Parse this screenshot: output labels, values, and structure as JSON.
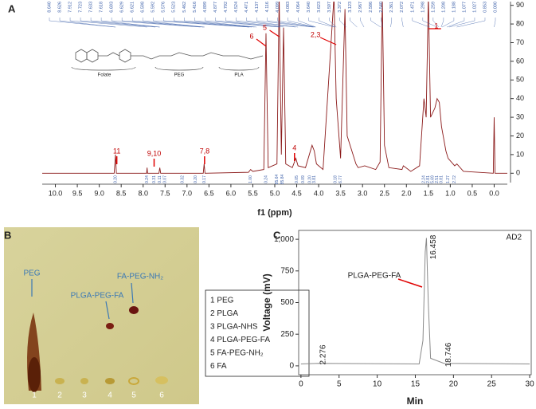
{
  "chart_data": [
    {
      "type": "nmr",
      "panel": "A",
      "xlabel": "f1 (ppm)",
      "color": "#8b1a1a",
      "xlim": [
        10.3,
        -0.3
      ],
      "ylim": [
        -5,
        92
      ],
      "xticks": [
        {
          "value": 10,
          "label": "10.0"
        },
        {
          "value": 9.5,
          "label": "9.5"
        },
        {
          "value": 9,
          "label": "9.0"
        },
        {
          "value": 8.5,
          "label": "8.5"
        },
        {
          "value": 8,
          "label": "8.0"
        },
        {
          "value": 7.5,
          "label": "7.5"
        },
        {
          "value": 7,
          "label": "7.0"
        },
        {
          "value": 6.5,
          "label": "6.5"
        },
        {
          "value": 6,
          "label": "6.0"
        },
        {
          "value": 5.5,
          "label": "5.5"
        },
        {
          "value": 5,
          "label": "5.0"
        },
        {
          "value": 4.5,
          "label": "4.5"
        },
        {
          "value": 4,
          "label": "4.0"
        },
        {
          "value": 3.5,
          "label": "3.5"
        },
        {
          "value": 3,
          "label": "3.0"
        },
        {
          "value": 2.5,
          "label": "2.5"
        },
        {
          "value": 2,
          "label": "2.0"
        },
        {
          "value": 1.5,
          "label": "1.5"
        },
        {
          "value": 1,
          "label": "1.0"
        },
        {
          "value": 0.5,
          "label": "0.5"
        },
        {
          "value": 0,
          "label": "0.0"
        }
      ],
      "yticks": [
        0,
        10,
        20,
        30,
        40,
        50,
        60,
        70,
        80,
        90
      ],
      "x": [
        10.3,
        8.66,
        8.63,
        8.61,
        7.92,
        7.91,
        7.9,
        7.64,
        7.62,
        7.6,
        6.63,
        6.61,
        6.59,
        5.6,
        5.55,
        5.5,
        5.25,
        5.2,
        5.15,
        4.95,
        4.9,
        4.85,
        4.8,
        4.75,
        4.6,
        4.52,
        4.47,
        4.3,
        4.15,
        4.1,
        4.05,
        3.9,
        3.65,
        3.6,
        3.5,
        3.4,
        3.35,
        3.15,
        3.1,
        2.95,
        2.7,
        2.6,
        2.55,
        2.5,
        2.4,
        2.1,
        2.07,
        1.9,
        1.7,
        1.6,
        1.55,
        1.5,
        1.45,
        1.35,
        1.3,
        1.25,
        1.2,
        1.1,
        1.05,
        0.9,
        0.85,
        0.7,
        0.02,
        0,
        -0.02,
        -0.3
      ],
      "y": [
        0,
        0,
        10,
        0,
        0,
        3,
        0,
        0,
        3,
        0,
        0,
        5,
        0,
        0.5,
        2,
        1,
        2,
        75,
        3,
        5,
        95,
        10,
        78,
        5,
        3,
        8,
        4,
        3,
        15,
        12,
        5,
        2,
        95,
        40,
        8,
        88,
        20,
        5,
        3,
        4,
        2,
        6,
        95,
        15,
        3,
        2,
        4,
        1,
        4,
        40,
        30,
        95,
        30,
        35,
        40,
        38,
        25,
        12,
        8,
        4,
        5,
        1,
        0,
        30,
        0,
        0
      ],
      "peak_ppm_labels": [
        {
          "value": 8.64,
          "label": "8.640"
        },
        {
          "value": 8.626,
          "label": "8.626"
        },
        {
          "value": 7.912,
          "label": "7.912"
        },
        {
          "value": 7.723,
          "label": "7.723"
        },
        {
          "value": 7.633,
          "label": "7.633"
        },
        {
          "value": 7.618,
          "label": "7.618"
        },
        {
          "value": 6.693,
          "label": "6.693"
        },
        {
          "value": 6.629,
          "label": "6.629"
        },
        {
          "value": 6.621,
          "label": "6.621"
        },
        {
          "value": 6.598,
          "label": "6.598"
        },
        {
          "value": 5.592,
          "label": "5.592"
        },
        {
          "value": 5.576,
          "label": "5.576"
        },
        {
          "value": 5.523,
          "label": "5.523"
        },
        {
          "value": 5.462,
          "label": "5.462"
        },
        {
          "value": 5.416,
          "label": "5.416"
        },
        {
          "value": 4.899,
          "label": "4.899"
        },
        {
          "value": 4.877,
          "label": "4.877"
        },
        {
          "value": 4.792,
          "label": "4.792"
        },
        {
          "value": 4.524,
          "label": "4.524"
        },
        {
          "value": 4.471,
          "label": "4.471"
        },
        {
          "value": 4.137,
          "label": "4.137"
        },
        {
          "value": 4.116,
          "label": "4.116"
        },
        {
          "value": 4.099,
          "label": "4.099"
        },
        {
          "value": 4.083,
          "label": "4.083"
        },
        {
          "value": 4.064,
          "label": "4.064"
        },
        {
          "value": 3.64,
          "label": "3.640"
        },
        {
          "value": 3.623,
          "label": "3.623"
        },
        {
          "value": 3.597,
          "label": "3.597"
        },
        {
          "value": 3.372,
          "label": "3.372"
        },
        {
          "value": 3.123,
          "label": "3.123"
        },
        {
          "value": 2.967,
          "label": "2.967"
        },
        {
          "value": 2.586,
          "label": "2.586"
        },
        {
          "value": 2.54,
          "label": "2.540"
        },
        {
          "value": 2.361,
          "label": "2.361"
        },
        {
          "value": 2.072,
          "label": "2.072"
        },
        {
          "value": 1.471,
          "label": "1.471"
        },
        {
          "value": 1.298,
          "label": "1.298"
        },
        {
          "value": 1.259,
          "label": "1.259"
        },
        {
          "value": 1.208,
          "label": "1.208"
        },
        {
          "value": 1.188,
          "label": "1.188"
        },
        {
          "value": 1.077,
          "label": "1.077"
        },
        {
          "value": 1.027,
          "label": "1.027"
        },
        {
          "value": 0.853,
          "label": "0.853"
        },
        {
          "value": 0,
          "label": "0.000"
        }
      ],
      "integrals": [
        {
          "x": 8.63,
          "label": "0.20"
        },
        {
          "x": 7.91,
          "label": "0.24"
        },
        {
          "x": 7.75,
          "label": "0.31"
        },
        {
          "x": 7.62,
          "label": "0.11"
        },
        {
          "x": 7.5,
          "label": "0.07"
        },
        {
          "x": 7.1,
          "label": "0.32"
        },
        {
          "x": 6.8,
          "label": "0.20"
        },
        {
          "x": 6.6,
          "label": "0.17"
        },
        {
          "x": 5.55,
          "label": "1.00"
        },
        {
          "x": 5.2,
          "label": "0.24"
        },
        {
          "x": 4.95,
          "label": "85.64"
        },
        {
          "x": 4.82,
          "label": "85.84"
        },
        {
          "x": 4.5,
          "label": "0.05"
        },
        {
          "x": 4.35,
          "label": "0.09"
        },
        {
          "x": 4.2,
          "label": "0.20"
        },
        {
          "x": 4.1,
          "label": "3.81"
        },
        {
          "x": 3.62,
          "label": "0.18"
        },
        {
          "x": 3.5,
          "label": "6.77"
        },
        {
          "x": 1.6,
          "label": "2.24"
        },
        {
          "x": 1.5,
          "label": "2.81"
        },
        {
          "x": 1.4,
          "label": "5.69"
        },
        {
          "x": 1.3,
          "label": "2.51"
        },
        {
          "x": 1.2,
          "label": "0.81"
        },
        {
          "x": 1.05,
          "label": "1.27"
        },
        {
          "x": 0.9,
          "label": "2.72"
        }
      ],
      "annotations": [
        {
          "text": "11",
          "x": 8.6
        },
        {
          "text": "9,10",
          "x": 7.75
        },
        {
          "text": "7,8",
          "x": 6.6
        },
        {
          "text": "4",
          "x": 4.55
        },
        {
          "text": "5",
          "x": 4.9
        },
        {
          "text": "6",
          "x": 5.2
        },
        {
          "text": "2,3",
          "x": 3.6
        },
        {
          "text": "1",
          "x": 1.5
        }
      ],
      "structure_labels": [
        "Folate",
        "PEG",
        "PLA"
      ]
    },
    {
      "type": "image",
      "panel": "B",
      "lanes": [
        "1",
        "2",
        "3",
        "4",
        "5",
        "6"
      ],
      "spot_labels": [
        "PEG",
        "PLGA-PEG-FA",
        "FA-PEG-NH₂"
      ],
      "legend": [
        "1 PEG",
        "2 PLGA",
        "3 PLGA-NHS",
        "4 PLGA-PEG-FA",
        "5 FA-PEG-NH₂",
        "6 FA"
      ]
    },
    {
      "type": "line",
      "panel": "C",
      "xlabel": "Min",
      "ylabel": "Voltage (mV)",
      "color": "#8a8a8a",
      "series_label": "AD2",
      "annotation": "PLGA-PEG-FA",
      "xlim": [
        -0.3,
        30.2
      ],
      "ylim": [
        -70,
        1070
      ],
      "xticks": [
        0,
        5,
        10,
        15,
        20,
        25,
        30
      ],
      "yticks": [
        0,
        250,
        500,
        750,
        {
          "value": 1000,
          "label": "1,000"
        }
      ],
      "x": [
        0,
        2.276,
        15.5,
        16,
        16.3,
        16.458,
        16.7,
        17,
        18.746,
        30
      ],
      "y": [
        15,
        20,
        15,
        200,
        900,
        1010,
        500,
        60,
        20,
        15
      ],
      "peak_labels": [
        2.276,
        16.458,
        18.746
      ]
    }
  ]
}
